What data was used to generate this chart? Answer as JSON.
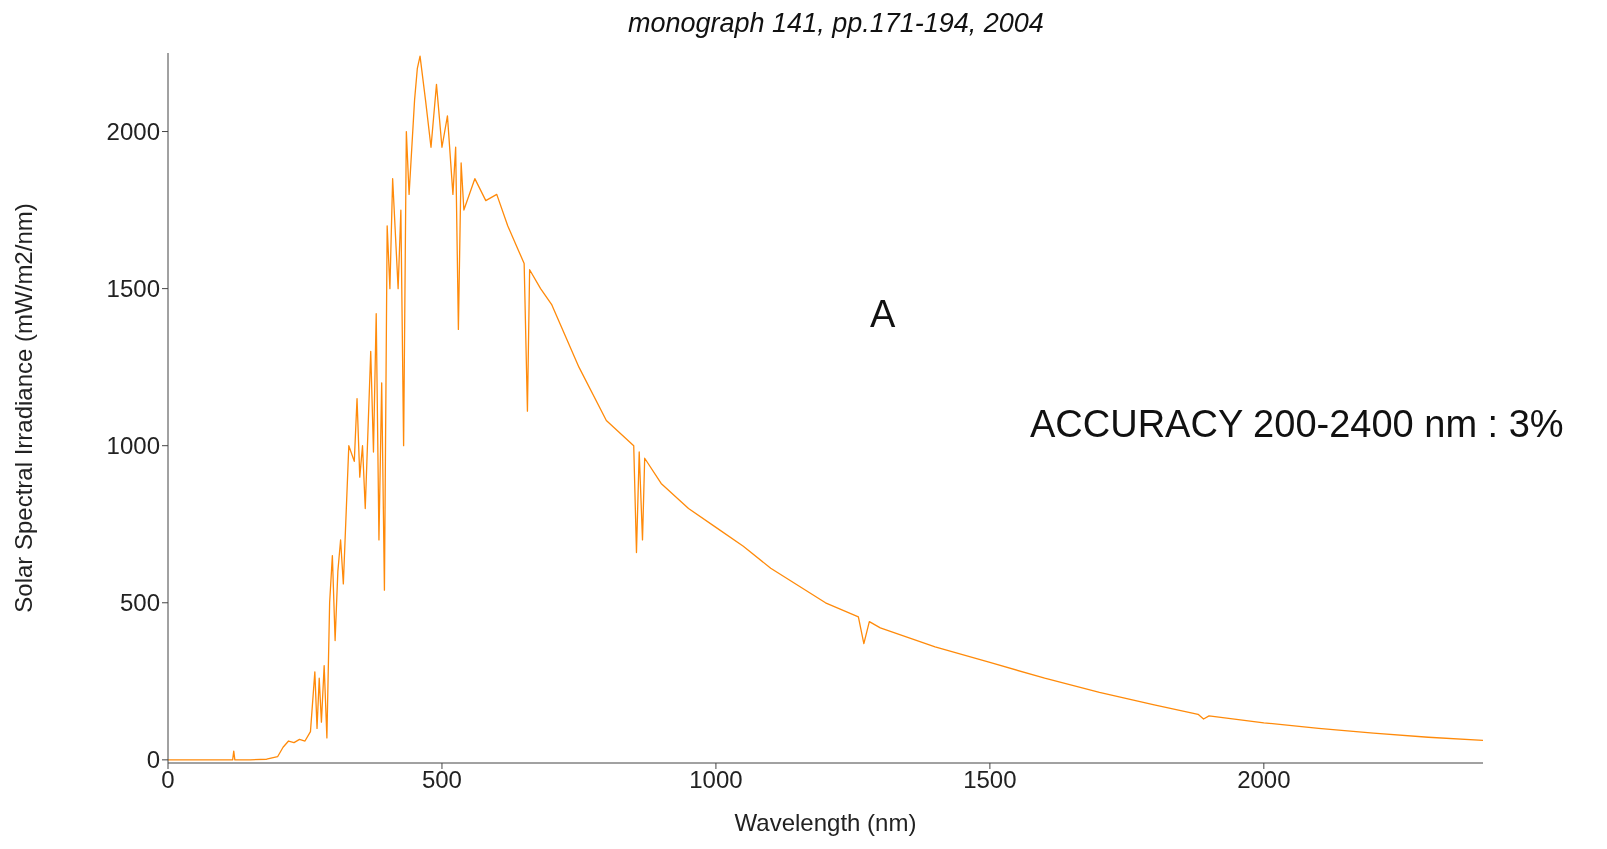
{
  "chart_data": {
    "type": "line",
    "xlabel": "Wavelength (nm)",
    "ylabel": "Solar Spectral Irradiance (mW/m2/nm)",
    "annotations": [
      "monograph 141, pp.171-194, 2004",
      "A",
      "ACCURACY 200-2400 nm : 3%"
    ],
    "x": [
      0,
      100,
      118,
      120,
      122,
      150,
      180,
      200,
      210,
      220,
      230,
      240,
      250,
      260,
      268,
      272,
      276,
      280,
      285,
      290,
      295,
      300,
      305,
      310,
      315,
      320,
      330,
      340,
      345,
      350,
      355,
      360,
      370,
      375,
      380,
      385,
      390,
      395,
      400,
      405,
      410,
      420,
      425,
      430,
      435,
      440,
      450,
      455,
      460,
      470,
      480,
      490,
      500,
      510,
      520,
      525,
      530,
      535,
      540,
      560,
      580,
      600,
      620,
      640,
      650,
      656,
      660,
      680,
      700,
      750,
      800,
      850,
      855,
      860,
      866,
      870,
      900,
      950,
      1000,
      1050,
      1100,
      1200,
      1260,
      1270,
      1280,
      1300,
      1400,
      1500,
      1600,
      1700,
      1800,
      1880,
      1890,
      1900,
      2000,
      2100,
      2200,
      2300,
      2400
    ],
    "series": [
      {
        "color": "#ff8a0a",
        "values": [
          0,
          0,
          0,
          28,
          0,
          0,
          2,
          10,
          40,
          60,
          55,
          65,
          60,
          90,
          280,
          100,
          260,
          120,
          300,
          70,
          500,
          650,
          380,
          600,
          700,
          560,
          1000,
          950,
          1150,
          900,
          1000,
          800,
          1300,
          980,
          1420,
          700,
          1200,
          540,
          1700,
          1500,
          1850,
          1500,
          1750,
          1000,
          2000,
          1800,
          2100,
          2200,
          2240,
          2100,
          1950,
          2150,
          1950,
          2050,
          1800,
          1950,
          1370,
          1900,
          1750,
          1850,
          1780,
          1800,
          1700,
          1620,
          1580,
          1110,
          1560,
          1500,
          1450,
          1250,
          1080,
          1000,
          660,
          980,
          700,
          960,
          880,
          800,
          740,
          680,
          610,
          500,
          455,
          370,
          440,
          420,
          360,
          310,
          260,
          215,
          175,
          145,
          130,
          140,
          118,
          100,
          85,
          72,
          62
        ]
      }
    ],
    "xlim": [
      0,
      2400
    ],
    "xticks": [
      0,
      500,
      1000,
      1500,
      2000
    ],
    "ylim": [
      -10,
      2250
    ],
    "yticks": [
      0,
      500,
      1000,
      1500,
      2000
    ],
    "grid": false,
    "legend": false,
    "marker": "none",
    "line_style": "solid"
  }
}
